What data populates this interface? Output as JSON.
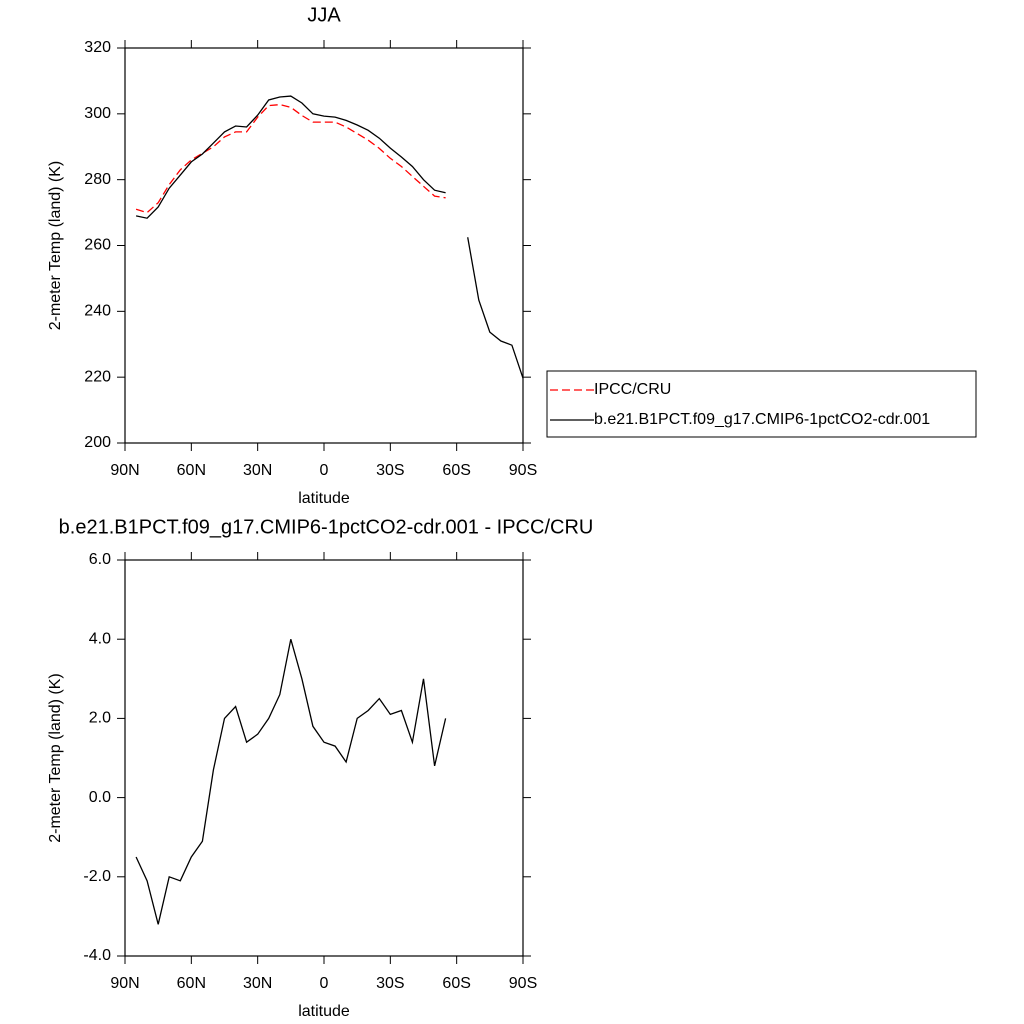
{
  "chart_data": [
    {
      "type": "line",
      "title": "JJA",
      "xlabel": "latitude",
      "ylabel": "2-meter Temp (land) (K)",
      "x": [
        85,
        80,
        75,
        70,
        65,
        60,
        55,
        50,
        45,
        40,
        35,
        30,
        25,
        20,
        15,
        10,
        5,
        0,
        -5,
        -10,
        -15,
        -20,
        -25,
        -30,
        -35,
        -40,
        -45,
        -50,
        -55,
        -60,
        -65,
        -70,
        -75,
        -80,
        -85,
        -90
      ],
      "series": [
        {
          "name": "IPCC/CRU",
          "color": "#ff0000",
          "linestyle": "dashed",
          "values": [
            271,
            270,
            273,
            278.5,
            283,
            286,
            288,
            290,
            293,
            294.5,
            294.5,
            299,
            302.5,
            302.8,
            302,
            299.5,
            297.5,
            297.5,
            297.5,
            296,
            294,
            292,
            289.5,
            286.5,
            284,
            281,
            278,
            275,
            274.5,
            null,
            null,
            null,
            null,
            null,
            null,
            null
          ]
        },
        {
          "name": "b.e21.B1PCT.f09_g17.CMIP6-1pctCO2-cdr.001",
          "color": "#000000",
          "linestyle": "solid",
          "values": [
            269,
            268.3,
            271.7,
            277.4,
            281.4,
            285.4,
            287.8,
            291.1,
            294.5,
            296.3,
            296,
            299.6,
            304.2,
            305.1,
            305.4,
            303.3,
            300,
            299.3,
            299,
            298,
            296.6,
            295,
            292.6,
            289.6,
            286.9,
            284,
            280,
            276.8,
            276,
            null,
            262.5,
            243.4,
            233.7,
            231,
            229.7,
            219.7
          ]
        }
      ],
      "xlim": [
        90,
        -90
      ],
      "xticks": [
        {
          "value": 90,
          "label": "90N"
        },
        {
          "value": 60,
          "label": "60N"
        },
        {
          "value": 30,
          "label": "30N"
        },
        0,
        {
          "value": -30,
          "label": "30S"
        },
        {
          "value": -60,
          "label": "60S"
        },
        {
          "value": -90,
          "label": "90S"
        }
      ],
      "ylim": [
        200,
        320
      ],
      "yticks": [
        200,
        220,
        240,
        260,
        280,
        300,
        320
      ],
      "legend": "right"
    },
    {
      "type": "line",
      "title": "b.e21.B1PCT.f09_g17.CMIP6-1pctCO2-cdr.001 - IPCC/CRU",
      "xlabel": "latitude",
      "ylabel": "2-meter Temp (land) (K)",
      "x": [
        85,
        80,
        75,
        70,
        65,
        60,
        55,
        50,
        45,
        40,
        35,
        30,
        25,
        20,
        15,
        10,
        5,
        0,
        -5,
        -10,
        -15,
        -20,
        -25,
        -30,
        -35,
        -40,
        -45,
        -50,
        -55
      ],
      "series": [
        {
          "color": "#000000",
          "linestyle": "solid",
          "values": [
            -1.5,
            -2.1,
            -3.2,
            -2.0,
            -2.1,
            -1.5,
            -1.1,
            0.7,
            2.0,
            2.3,
            1.4,
            1.6,
            2.0,
            2.6,
            4.0,
            3.0,
            1.8,
            1.4,
            1.3,
            0.9,
            2.0,
            2.2,
            2.5,
            2.1,
            2.2,
            1.4,
            3.0,
            0.8,
            2.0
          ]
        }
      ],
      "xlim": [
        90,
        -90
      ],
      "xticks": [
        {
          "value": 90,
          "label": "90N"
        },
        {
          "value": 60,
          "label": "60N"
        },
        {
          "value": 30,
          "label": "30N"
        },
        0,
        {
          "value": -30,
          "label": "30S"
        },
        {
          "value": -60,
          "label": "60S"
        },
        {
          "value": -90,
          "label": "90S"
        }
      ],
      "ylim": [
        -4,
        6
      ],
      "yticks": [
        {
          "value": -4,
          "label": "-4.0"
        },
        {
          "value": -2,
          "label": "-2.0"
        },
        {
          "value": 0,
          "label": "0.0"
        },
        {
          "value": 2,
          "label": "2.0"
        },
        {
          "value": 4,
          "label": "4.0"
        },
        {
          "value": 6,
          "label": "6.0"
        }
      ]
    }
  ]
}
